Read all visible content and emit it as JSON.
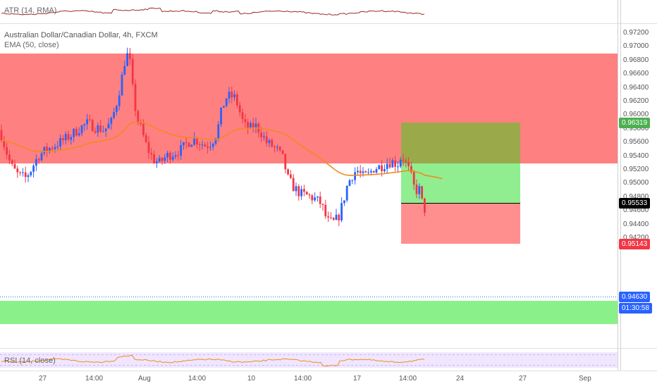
{
  "atr_panel": {
    "label": "ATR (14, RMA)"
  },
  "main_panel": {
    "symbol_title": "Australian Dollar/Canadian Dollar, 4h, FXCM",
    "ema_label": "EMA (50, close)"
  },
  "rsi_panel": {
    "label": "RSI (14, close)"
  },
  "price_axis": {
    "ticks": [
      "0.97200",
      "0.97000",
      "0.96800",
      "0.96600",
      "0.96400",
      "0.96200",
      "0.96000",
      "0.95800",
      "0.95600",
      "0.95400",
      "0.95200",
      "0.95000",
      "0.94800",
      "0.94600",
      "0.94400",
      "0.94200"
    ]
  },
  "price_tags": {
    "target": "0.96319",
    "entry": "0.95533",
    "stop": "0.95143",
    "last": "0.94630",
    "countdown": "01:30:58"
  },
  "time_axis": {
    "ticks": [
      "27",
      "14:00",
      "Aug",
      "14:00",
      "10",
      "14:00",
      "17",
      "14:00",
      "24",
      "27",
      "Sep"
    ]
  },
  "colors": {
    "resistance_zone": "#ff8080",
    "support_zone": "#8af08a",
    "target_zone": "#90ee90",
    "target_overlap": "#9aaa4a",
    "stop_zone": "#ff8f8f",
    "bull_candle": "#2962ff",
    "bear_candle": "#f23645",
    "ema_line": "#f08a20",
    "rsi_bg": "#f0e6ff"
  },
  "chart_data": {
    "type": "candlestick",
    "title": "Australian Dollar/Canadian Dollar, 4h, FXCM",
    "indicator": "EMA (50, close)",
    "ylim": [
      0.9412,
      0.973
    ],
    "zones": {
      "resistance": [
        0.9595,
        0.97
      ],
      "support": [
        0.9437,
        0.9458
      ],
      "position_target": [
        0.95533,
        0.96319
      ],
      "position_stop": [
        0.95143,
        0.95533
      ]
    }
  }
}
